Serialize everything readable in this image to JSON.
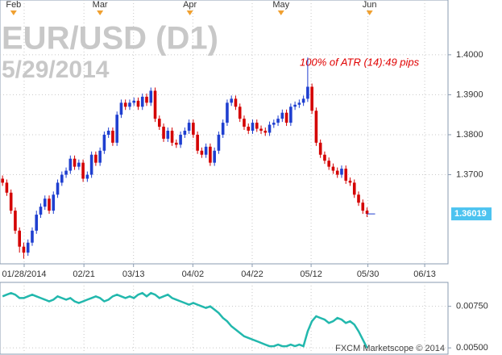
{
  "chart_data": [
    {
      "type": "candlestick",
      "title": "EUR/USD (D1)",
      "subtitle": "5/29/2014",
      "annotation": "100% of ATR (14):49 pips",
      "open": [
        1.369,
        1.368,
        1.3655,
        1.361,
        1.356,
        1.352,
        1.3505,
        1.353,
        1.356,
        1.36,
        1.362,
        1.364,
        1.361,
        1.365,
        1.368,
        1.37,
        1.371,
        1.374,
        1.372,
        1.373,
        1.369,
        1.37,
        1.375,
        1.373,
        1.376,
        1.38,
        1.381,
        1.378,
        1.385,
        1.388,
        1.387,
        1.388,
        1.3885,
        1.387,
        1.3895,
        1.388,
        1.391,
        1.384,
        1.382,
        1.379,
        1.381,
        1.378,
        1.3775,
        1.38,
        1.381,
        1.383,
        1.38,
        1.376,
        1.375,
        1.377,
        1.373,
        1.376,
        1.38,
        1.383,
        1.388,
        1.389,
        1.387,
        1.384,
        1.382,
        1.381,
        1.383,
        1.3815,
        1.381,
        1.3805,
        1.3825,
        1.383,
        1.384,
        1.3855,
        1.383,
        1.387,
        1.3875,
        1.388,
        1.389,
        1.392,
        1.386,
        1.378,
        1.375,
        1.3735,
        1.372,
        1.371,
        1.37,
        1.3715,
        1.3685,
        1.368,
        1.365,
        1.363,
        1.361
      ],
      "high": [
        1.3698,
        1.3688,
        1.3663,
        1.3618,
        1.3568,
        1.353,
        1.3538,
        1.3568,
        1.361,
        1.3628,
        1.3648,
        1.3648,
        1.3658,
        1.3688,
        1.3708,
        1.3718,
        1.3748,
        1.3748,
        1.3738,
        1.3738,
        1.3708,
        1.3758,
        1.3758,
        1.3768,
        1.3808,
        1.3818,
        1.3818,
        1.3858,
        1.3888,
        1.3888,
        1.3888,
        1.3893,
        1.3893,
        1.3903,
        1.3903,
        1.3918,
        1.3918,
        1.3848,
        1.3828,
        1.3818,
        1.3818,
        1.3788,
        1.3808,
        1.3818,
        1.3838,
        1.3838,
        1.3808,
        1.3768,
        1.3778,
        1.3778,
        1.3768,
        1.3808,
        1.3838,
        1.3888,
        1.3898,
        1.3898,
        1.3878,
        1.3848,
        1.3828,
        1.3838,
        1.3838,
        1.3823,
        1.3818,
        1.3833,
        1.3838,
        1.3848,
        1.3863,
        1.3863,
        1.3878,
        1.3883,
        1.3888,
        1.3898,
        1.3993,
        1.3928,
        1.3868,
        1.3788,
        1.3758,
        1.3743,
        1.3728,
        1.3718,
        1.3723,
        1.3723,
        1.3693,
        1.3688,
        1.3658,
        1.3638,
        1.3618
      ],
      "low": [
        1.3672,
        1.3647,
        1.3602,
        1.3552,
        1.3505,
        1.349,
        1.3497,
        1.3522,
        1.3552,
        1.3592,
        1.3612,
        1.3602,
        1.3602,
        1.3642,
        1.3672,
        1.3692,
        1.3702,
        1.3712,
        1.3712,
        1.3682,
        1.3682,
        1.3692,
        1.3722,
        1.3722,
        1.3752,
        1.3792,
        1.3772,
        1.3772,
        1.3842,
        1.3862,
        1.3862,
        1.3872,
        1.3862,
        1.3862,
        1.3872,
        1.3872,
        1.3832,
        1.3812,
        1.3782,
        1.3782,
        1.3772,
        1.3767,
        1.3767,
        1.3792,
        1.3802,
        1.3792,
        1.3752,
        1.3742,
        1.3742,
        1.3722,
        1.3722,
        1.3752,
        1.3792,
        1.3822,
        1.3872,
        1.3862,
        1.3832,
        1.3812,
        1.3802,
        1.3802,
        1.3807,
        1.3802,
        1.3797,
        1.3797,
        1.3817,
        1.3822,
        1.3832,
        1.3822,
        1.3822,
        1.3862,
        1.3867,
        1.3872,
        1.3882,
        1.3852,
        1.3772,
        1.3742,
        1.3727,
        1.3712,
        1.3702,
        1.3692,
        1.3692,
        1.3677,
        1.3672,
        1.3642,
        1.3622,
        1.3602,
        1.3594
      ],
      "close": [
        1.368,
        1.3655,
        1.361,
        1.356,
        1.352,
        1.3505,
        1.353,
        1.356,
        1.36,
        1.362,
        1.364,
        1.361,
        1.365,
        1.368,
        1.37,
        1.371,
        1.374,
        1.372,
        1.373,
        1.369,
        1.37,
        1.375,
        1.373,
        1.376,
        1.38,
        1.381,
        1.378,
        1.385,
        1.388,
        1.387,
        1.388,
        1.3885,
        1.387,
        1.3895,
        1.388,
        1.391,
        1.384,
        1.382,
        1.379,
        1.381,
        1.378,
        1.3775,
        1.38,
        1.381,
        1.383,
        1.38,
        1.376,
        1.375,
        1.377,
        1.373,
        1.376,
        1.38,
        1.383,
        1.388,
        1.389,
        1.387,
        1.384,
        1.382,
        1.381,
        1.383,
        1.3815,
        1.381,
        1.3805,
        1.3825,
        1.383,
        1.384,
        1.3855,
        1.383,
        1.387,
        1.3875,
        1.388,
        1.389,
        1.392,
        1.386,
        1.378,
        1.375,
        1.3735,
        1.372,
        1.371,
        1.37,
        1.3715,
        1.3685,
        1.368,
        1.365,
        1.363,
        1.361,
        1.3602
      ],
      "up_color": "#1f3fd0",
      "down_color": "#d40000",
      "xlim": [
        -0.6,
        105.1
      ],
      "xticks": [
        {
          "value": 5.1,
          "label": "01/28/2014"
        },
        {
          "value": 19.2,
          "label": "02/21"
        },
        {
          "value": 30.9,
          "label": "03/13"
        },
        {
          "value": 44.9,
          "label": "04/02"
        },
        {
          "value": 58.9,
          "label": "04/22"
        },
        {
          "value": 72.8,
          "label": "05/12"
        },
        {
          "value": 86.2,
          "label": "05/30"
        },
        {
          "value": 99.6,
          "label": "06/13"
        }
      ],
      "top_xticks": [
        {
          "value": 2.6,
          "label": "Feb"
        },
        {
          "value": 23.0,
          "label": "Mar"
        },
        {
          "value": 44.2,
          "label": "Apr"
        },
        {
          "value": 65.7,
          "label": "May"
        },
        {
          "value": 86.6,
          "label": "Jun"
        }
      ],
      "ylim": [
        1.3477,
        1.4137
      ],
      "yticks": [
        {
          "value": 1.37,
          "label": "1.3700"
        },
        {
          "value": 1.38,
          "label": "1.3800"
        },
        {
          "value": 1.39,
          "label": "1.3900"
        },
        {
          "value": 1.4,
          "label": "1.4000"
        }
      ],
      "last_price": 1.36019,
      "grid": true
    },
    {
      "type": "line",
      "color": "#22b8ad",
      "annotation": "FXCM Marketscope © 2014",
      "values": [
        0.0081,
        0.0082,
        0.0083,
        0.0082,
        0.008,
        0.008,
        0.0081,
        0.0082,
        0.0081,
        0.008,
        0.0079,
        0.0078,
        0.0079,
        0.0081,
        0.008,
        0.0079,
        0.008,
        0.0078,
        0.0077,
        0.0078,
        0.0079,
        0.008,
        0.0081,
        0.008,
        0.0078,
        0.0079,
        0.0081,
        0.0082,
        0.0081,
        0.008,
        0.0081,
        0.008,
        0.0082,
        0.0083,
        0.0081,
        0.0083,
        0.0082,
        0.008,
        0.0081,
        0.0082,
        0.008,
        0.0079,
        0.0078,
        0.0077,
        0.0076,
        0.0077,
        0.0076,
        0.0075,
        0.0074,
        0.0075,
        0.0073,
        0.0071,
        0.0068,
        0.0066,
        0.0063,
        0.0061,
        0.0059,
        0.0057,
        0.0056,
        0.0055,
        0.0054,
        0.0053,
        0.0052,
        0.0051,
        0.0051,
        0.0052,
        0.0051,
        0.0051,
        0.0052,
        0.0051,
        0.0052,
        0.0051,
        0.006,
        0.0066,
        0.0069,
        0.0068,
        0.0067,
        0.0065,
        0.0066,
        0.0068,
        0.0067,
        0.0065,
        0.0066,
        0.0064,
        0.006,
        0.0055,
        0.005
      ],
      "ylim": [
        0.00462,
        0.00894
      ],
      "yticks": [
        {
          "value": 0.005,
          "label": "0.00500"
        },
        {
          "value": 0.0075,
          "label": "0.00750"
        }
      ],
      "grid": true
    }
  ]
}
